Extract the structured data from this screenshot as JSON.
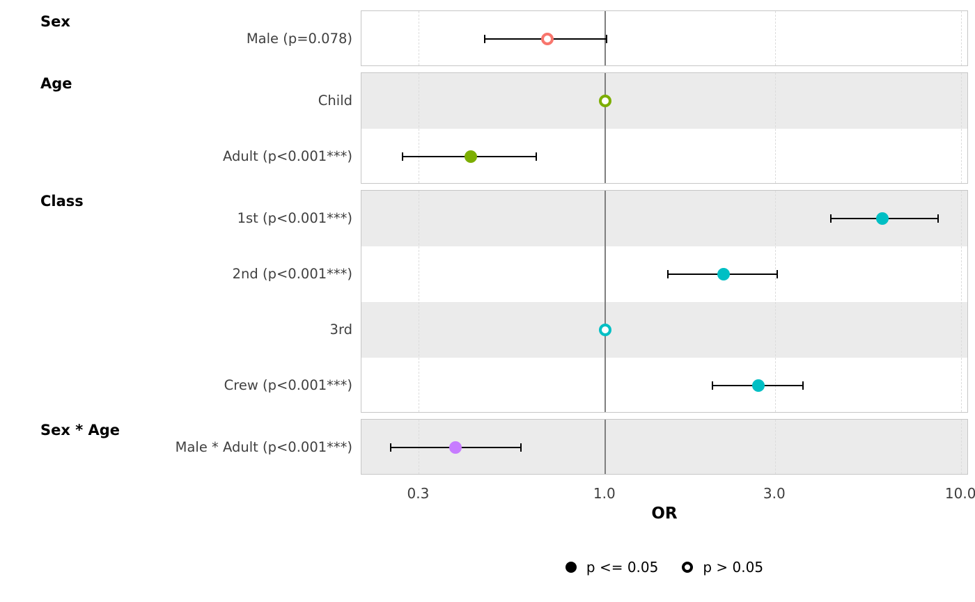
{
  "chart_data": {
    "type": "forest",
    "title": "",
    "xlabel": "OR",
    "x_scale": "log10",
    "x_domain": [
      0.207,
      10.5
    ],
    "x_ticks": [
      0.3,
      1.0,
      3.0,
      10.0
    ],
    "x_tick_labels": [
      "0.3",
      "1.0",
      "3.0",
      "10.0"
    ],
    "reference_line": 1.0,
    "stripe_color": "#ebebeb",
    "legend": {
      "significant": "p <= 0.05",
      "not_significant": "p > 0.05"
    },
    "groups": [
      {
        "label": "Sex",
        "color": "#F8766D",
        "rows": [
          {
            "label": "Male (p=0.078)",
            "or": 0.69,
            "ci_low": 0.46,
            "ci_high": 1.01,
            "significant": false
          }
        ]
      },
      {
        "label": "Age",
        "color": "#7CAE00",
        "rows": [
          {
            "label": "Child",
            "or": 1.0,
            "ci_low": null,
            "ci_high": null,
            "significant": false,
            "reference": true
          },
          {
            "label": "Adult (p<0.001***)",
            "or": 0.42,
            "ci_low": 0.27,
            "ci_high": 0.64,
            "significant": true
          }
        ]
      },
      {
        "label": "Class",
        "color": "#00BFC4",
        "rows": [
          {
            "label": "1st (p<0.001***)",
            "or": 6.0,
            "ci_low": 4.3,
            "ci_high": 8.6,
            "significant": true
          },
          {
            "label": "2nd (p<0.001***)",
            "or": 2.15,
            "ci_low": 1.5,
            "ci_high": 3.05,
            "significant": true
          },
          {
            "label": "3rd",
            "or": 1.0,
            "ci_low": null,
            "ci_high": null,
            "significant": false,
            "reference": true
          },
          {
            "label": "Crew (p<0.001***)",
            "or": 2.7,
            "ci_low": 2.0,
            "ci_high": 3.6,
            "significant": true
          }
        ]
      },
      {
        "label": "Sex * Age",
        "color": "#C77CFF",
        "rows": [
          {
            "label": "Male * Adult (p<0.001***)",
            "or": 0.38,
            "ci_low": 0.25,
            "ci_high": 0.58,
            "significant": true
          }
        ]
      }
    ]
  }
}
